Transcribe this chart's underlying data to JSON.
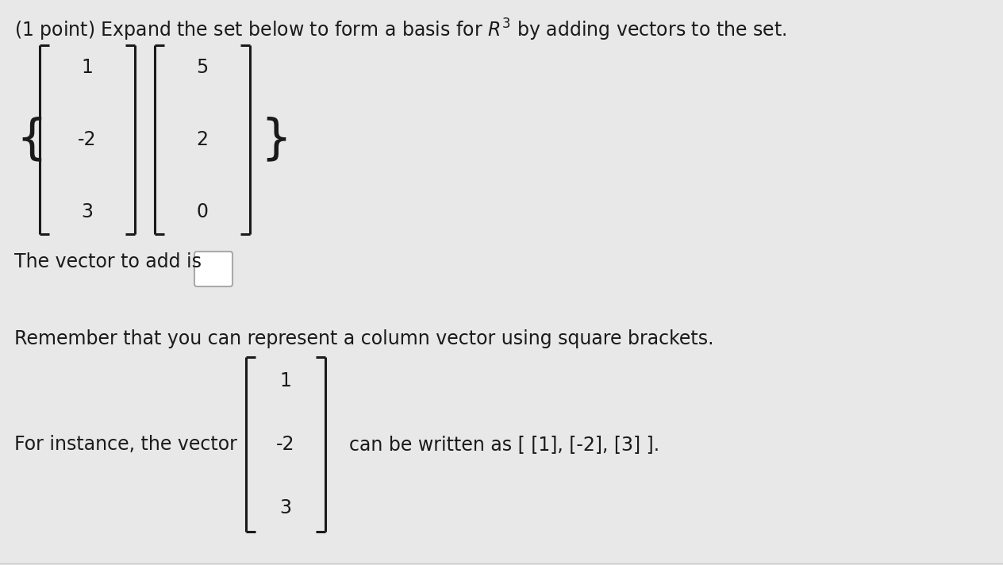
{
  "bg_color": "#e8e8e8",
  "title_part1": "(1 point) Expand the set below to form a basis for ",
  "title_R3": "$R^3$",
  "title_part2": " by adding vectors to the set.",
  "vec1": [
    "1",
    "-2",
    "3"
  ],
  "vec2": [
    "5",
    "2",
    "0"
  ],
  "vec_instance": [
    "1",
    "-2",
    "3"
  ],
  "text_vector_add": "The vector to add is",
  "text_remember": "Remember that you can represent a column vector using square brackets.",
  "text_for_instance": "For instance, the vector",
  "text_written_as": "can be written as [ [1], [-2], [3] ].",
  "font_size": 17,
  "text_color": "#1a1a1a",
  "bracket_color": "#1a1a1a",
  "bracket_lw": 2.2,
  "bracket_serif": 0.1
}
